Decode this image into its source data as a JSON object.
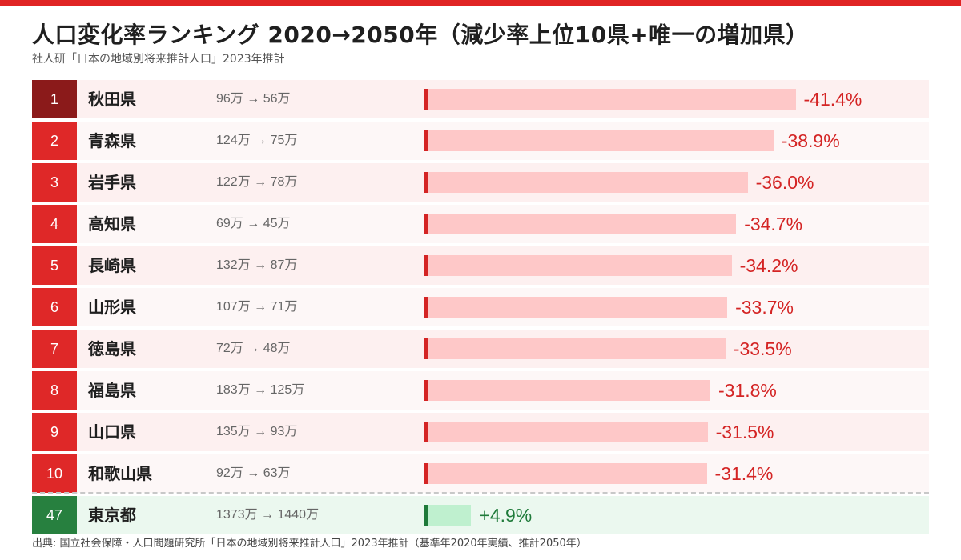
{
  "title": "人口変化率ランキング 2020→2050年（減少率上位10県+唯一の増加県）",
  "subtitle": "社人研「日本の地域別将来推計人口」2023年推計",
  "source": "出典: 国立社会保障・人口問題研究所「日本の地域別将来推計人口」2023年推計（基準年2020年実績、推計2050年）",
  "colors": {
    "accent_red": "#d42424",
    "rank_first": "#8b1a1a",
    "rank_default": "#df2828",
    "increase_green": "#1f7a3a",
    "decrease_bar": "#fec8c8",
    "increase_bar": "#bff0cf"
  },
  "chart_data": {
    "type": "bar",
    "orientation": "horizontal",
    "unit": "%",
    "rows": [
      {
        "rank": "1",
        "prefecture": "秋田県",
        "population": "96万 → 56万",
        "value": -41.4,
        "label": "-41.4%"
      },
      {
        "rank": "2",
        "prefecture": "青森県",
        "population": "124万 → 75万",
        "value": -38.9,
        "label": "-38.9%"
      },
      {
        "rank": "3",
        "prefecture": "岩手県",
        "population": "122万 → 78万",
        "value": -36.0,
        "label": "-36.0%"
      },
      {
        "rank": "4",
        "prefecture": "高知県",
        "population": "69万 → 45万",
        "value": -34.7,
        "label": "-34.7%"
      },
      {
        "rank": "5",
        "prefecture": "長崎県",
        "population": "132万 → 87万",
        "value": -34.2,
        "label": "-34.2%"
      },
      {
        "rank": "6",
        "prefecture": "山形県",
        "population": "107万 → 71万",
        "value": -33.7,
        "label": "-33.7%"
      },
      {
        "rank": "7",
        "prefecture": "徳島県",
        "population": "72万 → 48万",
        "value": -33.5,
        "label": "-33.5%"
      },
      {
        "rank": "8",
        "prefecture": "福島県",
        "population": "183万 → 125万",
        "value": -31.8,
        "label": "-31.8%"
      },
      {
        "rank": "9",
        "prefecture": "山口県",
        "population": "135万 → 93万",
        "value": -31.5,
        "label": "-31.5%"
      },
      {
        "rank": "10",
        "prefecture": "和歌山県",
        "population": "92万 → 63万",
        "value": -31.4,
        "label": "-31.4%"
      },
      {
        "rank": "47",
        "prefecture": "東京都",
        "population": "1373万 → 1440万",
        "value": 4.9,
        "label": "+4.9%"
      }
    ]
  }
}
